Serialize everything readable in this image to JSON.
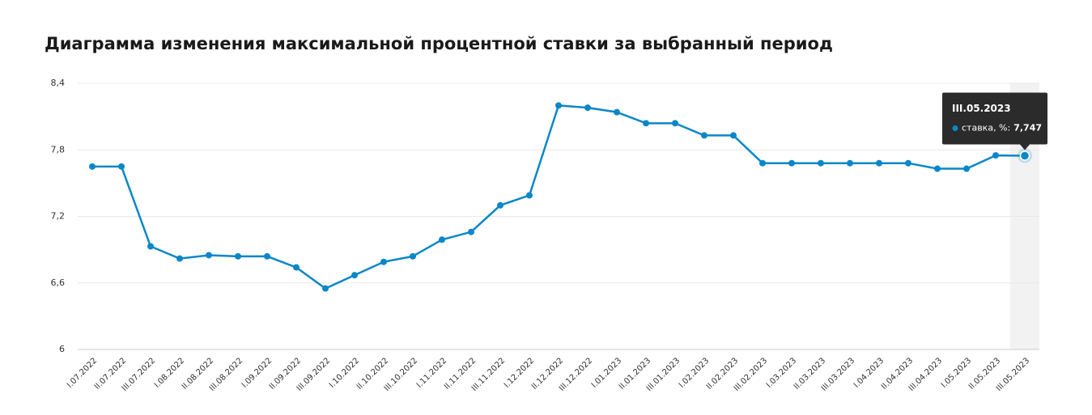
{
  "chart_data": {
    "type": "line",
    "title": "Диаграмма изменения максимальной процентной ставки за выбранный период",
    "categories": [
      "I.07.2022",
      "II.07.2022",
      "III.07.2022",
      "I.08.2022",
      "II.08.2022",
      "III.08.2022",
      "I.09.2022",
      "II.09.2022",
      "III.09.2022",
      "I.10.2022",
      "II.10.2022",
      "III.10.2022",
      "I.11.2022",
      "II.11.2022",
      "III.11.2022",
      "I.12.2022",
      "II.12.2022",
      "III.12.2022",
      "I.01.2023",
      "II.01.2023",
      "III.01.2023",
      "I.02.2023",
      "II.02.2023",
      "III.02.2023",
      "I.03.2023",
      "II.03.2023",
      "III.03.2023",
      "I.04.2023",
      "II.04.2023",
      "III.04.2023",
      "I.05.2023",
      "II.05.2023",
      "III.05.2023"
    ],
    "series": [
      {
        "name": "ставка, %:",
        "color": "#0a87c8",
        "values": [
          7.65,
          7.65,
          6.93,
          6.82,
          6.85,
          6.84,
          6.84,
          6.74,
          6.55,
          6.67,
          6.79,
          6.84,
          6.99,
          7.06,
          7.3,
          7.39,
          8.2,
          8.18,
          8.14,
          8.04,
          8.04,
          7.93,
          7.93,
          7.68,
          7.68,
          7.68,
          7.68,
          7.68,
          7.68,
          7.63,
          7.63,
          7.75,
          7.747
        ],
        "value_labels": [
          null,
          null,
          null,
          null,
          null,
          null,
          null,
          null,
          null,
          null,
          null,
          null,
          null,
          null,
          null,
          null,
          null,
          null,
          null,
          null,
          null,
          null,
          null,
          null,
          null,
          null,
          null,
          null,
          null,
          null,
          null,
          null,
          "7,747"
        ]
      }
    ],
    "ylim": [
      6,
      8.4
    ],
    "yticks": [
      6,
      {
        "value": 6.6,
        "label": "6,6"
      },
      {
        "value": 7.2,
        "label": "7,2"
      },
      {
        "value": 7.8,
        "label": "7,8"
      },
      {
        "value": 8.4,
        "label": "8,4"
      }
    ],
    "grid": true
  }
}
